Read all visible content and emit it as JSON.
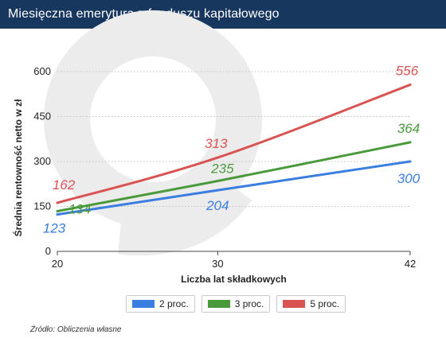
{
  "header": {
    "title": "Miesięczna emerytura z funduszu kapitałowego"
  },
  "source": "Źródło:  Obliczenia własne",
  "colors": {
    "header_bg": "#17375e",
    "series_2": "#3a7ee0",
    "series_3": "#4a9a3c",
    "series_5": "#d95352",
    "grid": "#bfbfbf",
    "watermark": "#ececec"
  },
  "watermark_icon": "ring-logo-watermark",
  "chart_data": {
    "type": "line",
    "title": "Miesięczna emerytura z funduszu kapitałowego",
    "xlabel": "Liczba lat składkowych",
    "ylabel": "Średnia rentowność netto w zł",
    "x": [
      20,
      30,
      42
    ],
    "x_ticks": [
      "20",
      "30",
      "42"
    ],
    "y_ticks": [
      "0",
      "150",
      "300",
      "450",
      "600"
    ],
    "ylim": [
      0,
      600
    ],
    "xlim": [
      20,
      42
    ],
    "grid": "horizontal dotted",
    "legend_placement": "bottom-center",
    "series": [
      {
        "name": "2 proc.",
        "values": [
          123,
          204,
          300
        ],
        "labels": [
          "123",
          "204",
          "300"
        ],
        "color": "#3a7ee0"
      },
      {
        "name": "3 proc.",
        "values": [
          134,
          235,
          364
        ],
        "labels": [
          "134",
          "235",
          "364"
        ],
        "color": "#4a9a3c"
      },
      {
        "name": "5 proc.",
        "values": [
          162,
          313,
          556
        ],
        "labels": [
          "162",
          "313",
          "556"
        ],
        "color": "#d95352"
      }
    ]
  }
}
